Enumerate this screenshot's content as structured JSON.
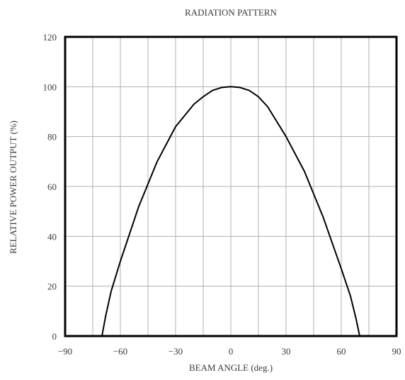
{
  "chart_data": {
    "type": "line",
    "title": "RADIATION PATTERN",
    "xlabel": "BEAM ANGLE (deg.)",
    "ylabel": "RELATIVE POWER OUTPUT (%)",
    "xlim": [
      -90,
      90
    ],
    "ylim": [
      0,
      120
    ],
    "xticks": [
      -90,
      -60,
      -30,
      0,
      30,
      60,
      90
    ],
    "xticklabels": [
      "−90",
      "−60",
      "−30",
      "0",
      "30",
      "60",
      "90"
    ],
    "yticks": [
      0,
      20,
      40,
      60,
      80,
      100,
      120
    ],
    "yticklabels": [
      "0",
      "20",
      "40",
      "60",
      "80",
      "100",
      "120"
    ],
    "grid": {
      "x_step": 15,
      "y_step": 20,
      "on": true
    },
    "series": [
      {
        "color": "#000000",
        "x": [
          -70,
          -68,
          -65,
          -60,
          -50,
          -40,
          -30,
          -20,
          -15,
          -10,
          -5,
          0,
          5,
          10,
          15,
          20,
          30,
          40,
          50,
          60,
          65,
          68,
          70
        ],
        "y": [
          0,
          8,
          18,
          30,
          52,
          70,
          84,
          93,
          96,
          98.5,
          99.7,
          100,
          99.7,
          98.5,
          96,
          92,
          80,
          66,
          48,
          27,
          16,
          7,
          0
        ]
      }
    ]
  }
}
